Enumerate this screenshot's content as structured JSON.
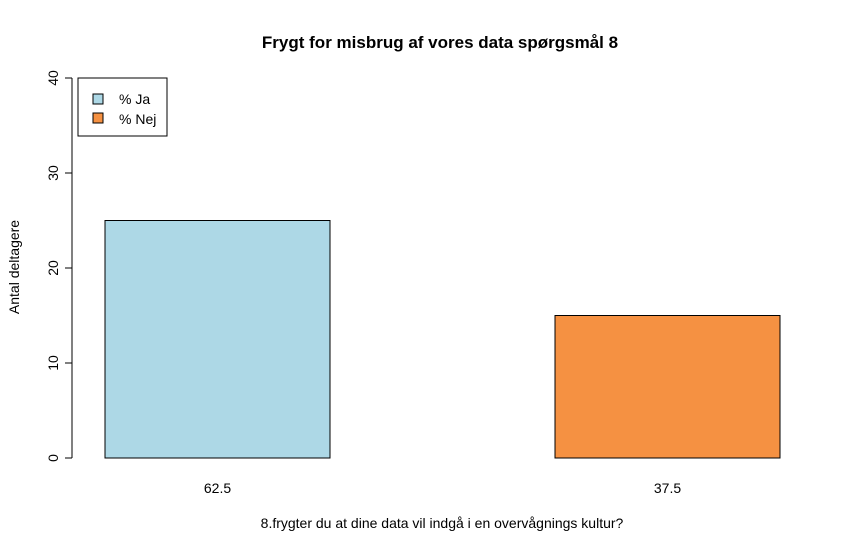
{
  "chart_data": {
    "type": "bar",
    "title": "Frygt for misbrug af vores data spørgsmål 8",
    "xlabel": "8.frygter du at dine data vil indgå i en overvågnings kultur?",
    "ylabel": "Antal deltagere",
    "categories": [
      "62.5",
      "37.5"
    ],
    "values": [
      25,
      15
    ],
    "colors": [
      "#add8e6",
      "#f59142"
    ],
    "ylim": [
      0,
      40
    ],
    "yticks": [
      "0",
      "10",
      "20",
      "30",
      "40"
    ],
    "legend": {
      "position": "top-left",
      "entries": [
        {
          "label": "% Ja",
          "color": "#add8e6"
        },
        {
          "label": "% Nej",
          "color": "#f59142"
        }
      ]
    },
    "grid": false
  }
}
